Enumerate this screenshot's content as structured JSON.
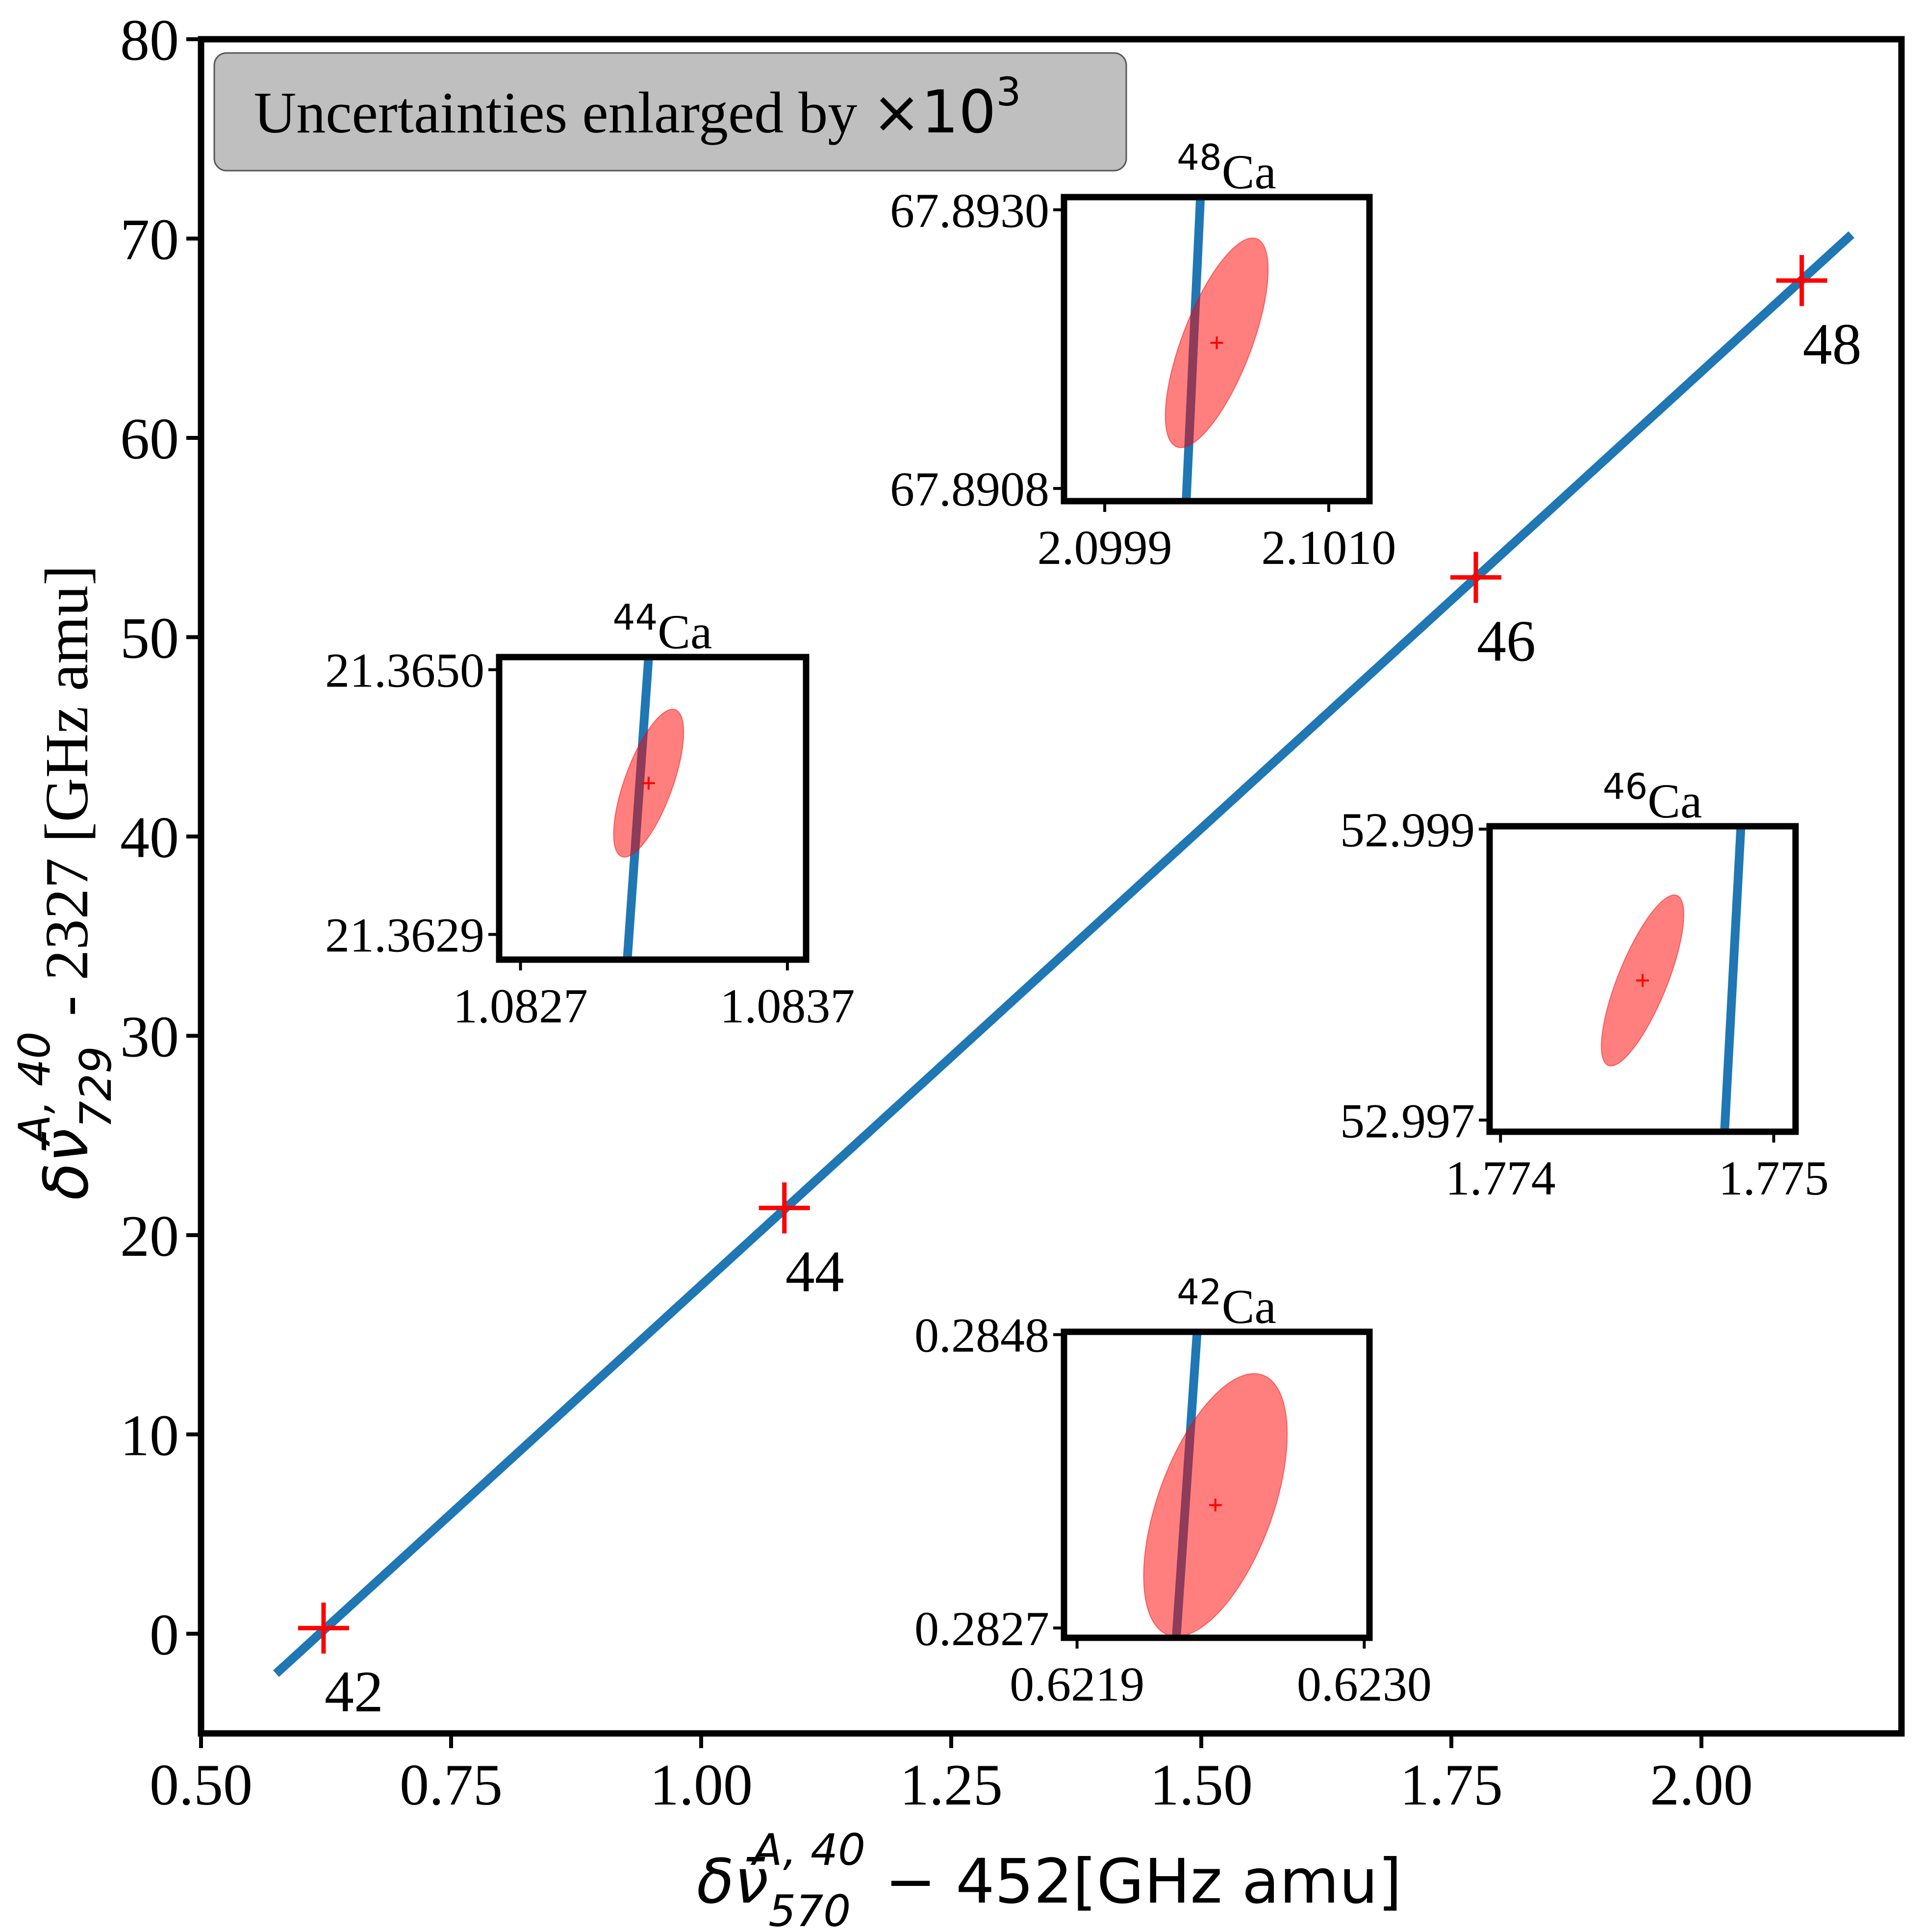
{
  "chart_data": {
    "type": "scatter",
    "title": "",
    "xlabel": {
      "main": "δν̄",
      "sub": "570",
      "sup": "A, 40",
      "rest": " − 452[GHz amu]"
    },
    "ylabel": {
      "main": "δν̄",
      "sub": "729",
      "sup": "A, 40",
      "rest": " - 2327 [GHz amu]"
    },
    "xlim": [
      0.5,
      2.2
    ],
    "ylim": [
      -5,
      80
    ],
    "xticks": [
      0.5,
      0.75,
      1.0,
      1.25,
      1.5,
      1.75,
      2.0
    ],
    "xtick_labels": [
      "0.50",
      "0.75",
      "1.00",
      "1.25",
      "1.50",
      "1.75",
      "2.00"
    ],
    "yticks": [
      0,
      10,
      20,
      30,
      40,
      50,
      60,
      70,
      80
    ],
    "ytick_labels": [
      "0",
      "10",
      "20",
      "30",
      "40",
      "50",
      "60",
      "70",
      "80"
    ],
    "annotation_box": {
      "text": "Uncertainties enlarged by ",
      "math": "×10",
      "sup": "3"
    },
    "fit_line": {
      "x0": 0.575,
      "y0": -2.0,
      "x1": 2.15,
      "y1": 70.2,
      "color": "#1f77b4"
    },
    "points": [
      {
        "label": "42",
        "x": 0.6225,
        "y": 0.284
      },
      {
        "label": "44",
        "x": 1.0832,
        "y": 21.364
      },
      {
        "label": "46",
        "x": 1.7745,
        "y": 52.998
      },
      {
        "label": "48",
        "x": 2.1003,
        "y": 67.892
      }
    ],
    "point_color": "#ff0000",
    "insets": [
      {
        "title_sup": "48",
        "title": "Ca",
        "xlim": [
          2.0997,
          2.1012
        ],
        "ylim": [
          67.8907,
          67.8931
        ],
        "xticks": [
          2.0999,
          2.101
        ],
        "xtick_labels": [
          "2.0999",
          "2.1010"
        ],
        "yticks": [
          67.8908,
          67.893
        ],
        "ytick_labels": [
          "67.8908",
          "67.8930"
        ],
        "line": [
          [
            2.1003,
            67.8907
          ],
          [
            2.10037,
            67.8931
          ]
        ],
        "ellipse": {
          "cx": 2.10045,
          "cy": 67.89195,
          "rx": 0.00017,
          "ry": 0.00088,
          "angle": 21
        }
      },
      {
        "title_sup": "44",
        "title": "Ca",
        "xlim": [
          1.08262,
          1.08377
        ],
        "ylim": [
          21.3627,
          21.3651
        ],
        "xticks": [
          1.0827,
          1.0837
        ],
        "xtick_labels": [
          "1.0827",
          "1.0837"
        ],
        "yticks": [
          21.3629,
          21.365
        ],
        "ytick_labels": [
          "21.3629",
          "21.3650"
        ],
        "line": [
          [
            1.0831,
            21.3627
          ],
          [
            1.08318,
            21.3651
          ]
        ],
        "ellipse": {
          "cx": 1.08318,
          "cy": 21.3641,
          "rx": 9e-05,
          "ry": 0.00062,
          "angle": 20
        }
      },
      {
        "title_sup": "46",
        "title": "Ca",
        "xlim": [
          1.77396,
          1.77508
        ],
        "ylim": [
          52.99692,
          52.99902
        ],
        "xticks": [
          1.774,
          1.775
        ],
        "xtick_labels": [
          "1.774",
          "1.775"
        ],
        "yticks": [
          52.997,
          52.999
        ],
        "ytick_labels": [
          "52.997",
          "52.999"
        ],
        "line": [
          [
            1.77482,
            52.99692
          ],
          [
            1.77488,
            52.99902
          ]
        ],
        "ellipse": {
          "cx": 1.77452,
          "cy": 52.99796,
          "rx": 9e-05,
          "ry": 0.00063,
          "angle": 22
        }
      },
      {
        "title_sup": "42",
        "title": "Ca",
        "xlim": [
          0.62185,
          0.62302
        ],
        "ylim": [
          0.28263,
          0.28482
        ],
        "xticks": [
          0.6219,
          0.623
        ],
        "xtick_labels": [
          "0.6219",
          "0.6230"
        ],
        "yticks": [
          0.2827,
          0.2848
        ],
        "ytick_labels": [
          "0.2827",
          "0.2848"
        ],
        "line": [
          [
            0.62228,
            0.28263
          ],
          [
            0.62236,
            0.28482
          ]
        ],
        "ellipse": {
          "cx": 0.62243,
          "cy": 0.28358,
          "rx": 0.00022,
          "ry": 0.00099,
          "angle": 20
        }
      }
    ]
  }
}
